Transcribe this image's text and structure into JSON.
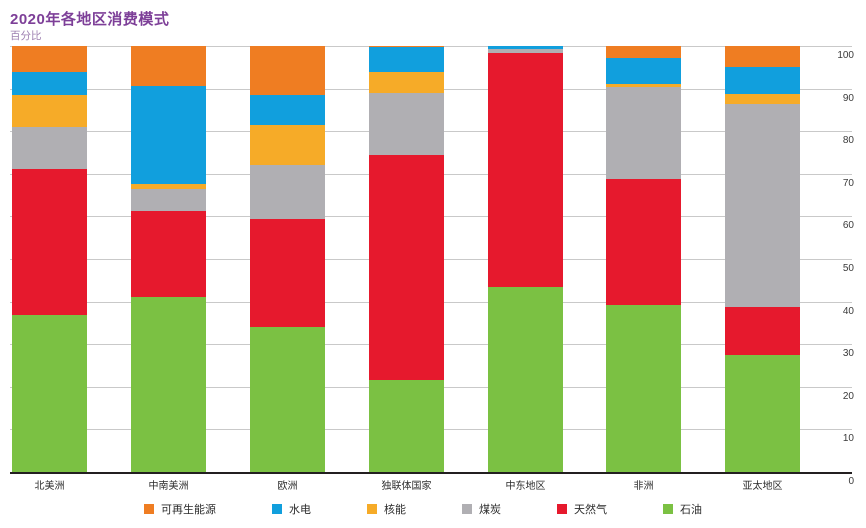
{
  "header": {
    "title": "2020年各地区消费模式",
    "subtitle": "百分比"
  },
  "colors": {
    "title": "#7d3f98",
    "subtitle": "#9d7fb0",
    "gridline": "#c9c9c9",
    "axis": "#231f20",
    "renewables": "#ef7d22",
    "hydro": "#119fdd",
    "nuclear": "#f6ab28",
    "coal": "#b0afb3",
    "gas": "#e6192d",
    "oil": "#7bc143"
  },
  "chart_data": {
    "type": "bar",
    "stacked": true,
    "unit": "percent share",
    "title": "2020年各地区消费模式",
    "subtitle": "百分比",
    "categories": [
      "北美洲",
      "中南美洲",
      "欧洲",
      "独联体国家",
      "中东地区",
      "非洲",
      "亚太地区"
    ],
    "series": [
      {
        "name": "可再生能源",
        "key": "renewables",
        "values": [
          6.0,
          9.4,
          11.5,
          0.2,
          0.0,
          2.8,
          5.0
        ]
      },
      {
        "name": "水电",
        "key": "hydro",
        "values": [
          5.6,
          23.0,
          7.0,
          6.0,
          0.8,
          6.1,
          6.2
        ]
      },
      {
        "name": "核能",
        "key": "nuclear",
        "values": [
          7.5,
          1.2,
          9.5,
          4.8,
          0.0,
          0.8,
          2.5
        ]
      },
      {
        "name": "煤炭",
        "key": "coal",
        "values": [
          9.7,
          5.1,
          12.6,
          14.6,
          0.8,
          21.5,
          47.5
        ]
      },
      {
        "name": "天然气",
        "key": "gas",
        "values": [
          34.4,
          20.1,
          25.3,
          52.9,
          54.9,
          29.5,
          11.3
        ]
      },
      {
        "name": "石油",
        "key": "oil",
        "values": [
          36.8,
          41.2,
          34.1,
          21.5,
          43.5,
          39.3,
          27.5
        ]
      }
    ],
    "stack_order_bottom_to_top": [
      "石油",
      "天然气",
      "煤炭",
      "核能",
      "水电",
      "可再生能源"
    ],
    "y_ticks": [
      0,
      10,
      20,
      30,
      40,
      50,
      60,
      70,
      80,
      90,
      100
    ],
    "ylim": [
      0,
      100
    ],
    "y_axis_side": "right",
    "grid": true,
    "legend_position": "bottom"
  }
}
